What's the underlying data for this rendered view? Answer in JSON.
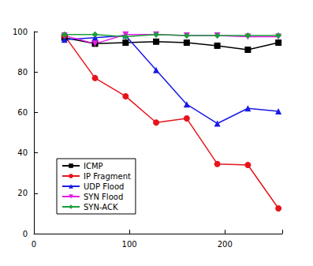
{
  "chart_data": {
    "type": "line",
    "x": [
      32,
      64,
      96,
      128,
      160,
      192,
      224,
      256
    ],
    "series": [
      {
        "name": "ICMP",
        "color": "#000000",
        "marker": "square",
        "values": [
          97,
          94,
          94.5,
          95,
          94.5,
          93,
          91,
          94.5
        ]
      },
      {
        "name": "IP Fragment",
        "color": "#e8141c",
        "marker": "circle",
        "values": [
          98,
          77,
          68,
          55,
          57,
          34.5,
          34,
          12.5
        ]
      },
      {
        "name": "UDP Flood",
        "color": "#1a1ae6",
        "marker": "triangle",
        "values": [
          96,
          97,
          98,
          81,
          64,
          54.5,
          62,
          60.5
        ]
      },
      {
        "name": "SYN Flood",
        "color": "#e61ae6",
        "marker": "triangle-down",
        "values": [
          98,
          94,
          98.5,
          98.5,
          98,
          98,
          97.5,
          97.5
        ]
      },
      {
        "name": "SYN-ACK",
        "color": "#1a9e3a",
        "marker": "diamond",
        "values": [
          98.5,
          98.5,
          97.5,
          98.5,
          98,
          98,
          98,
          98
        ]
      }
    ],
    "xlim": [
      0,
      260
    ],
    "xticks": [
      0,
      100,
      200
    ],
    "ylim": [
      0,
      100
    ],
    "yticks": [
      0,
      20,
      40,
      60,
      80,
      100
    ],
    "grid": false,
    "legend": "lower left"
  }
}
